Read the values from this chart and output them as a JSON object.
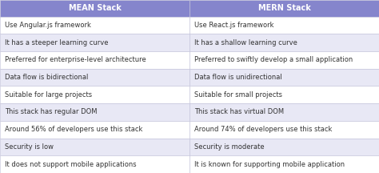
{
  "col1_header": "MEAN Stack",
  "col2_header": "MERN Stack",
  "rows": [
    [
      "Use Angular.js framework",
      "Use React.js framework"
    ],
    [
      "It has a steeper learning curve",
      "It has a shallow learning curve"
    ],
    [
      "Preferred for enterprise-level architecture",
      "Preferred to swiftly develop a small application"
    ],
    [
      "Data flow is bidirectional",
      "Data flow is unidirectional"
    ],
    [
      "Suitable for large projects",
      "Suitable for small projects"
    ],
    [
      "This stack has regular DOM",
      "This stack has virtual DOM"
    ],
    [
      "Around 56% of developers use this stack",
      "Around 74% of developers use this stack"
    ],
    [
      "Security is low",
      "Security is moderate"
    ],
    [
      "It does not support mobile applications",
      "It is known for supporting mobile application"
    ]
  ],
  "header_bg": "#8585cc",
  "row_bg_odd": "#ffffff",
  "row_bg_even": "#e8e8f5",
  "header_text_color": "#ffffff",
  "row_text_color": "#333333",
  "border_color": "#c0c0d8",
  "header_fontsize": 7.0,
  "row_fontsize": 6.0,
  "figsize": [
    4.74,
    2.16
  ],
  "dpi": 100
}
